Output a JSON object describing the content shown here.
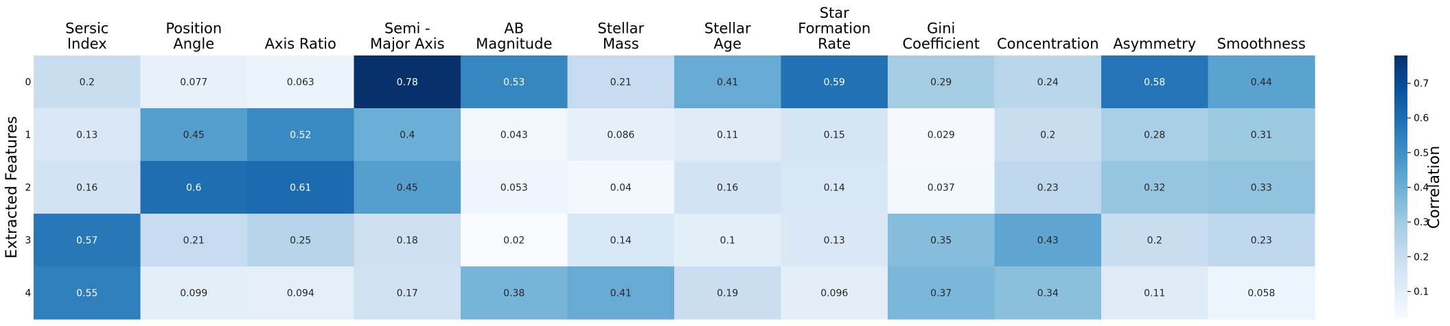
{
  "chart_data": {
    "type": "heatmap",
    "title": "",
    "xlabel": "",
    "ylabel": "Extracted Features",
    "columns": [
      [
        "Sersic",
        "Index"
      ],
      [
        "Position",
        "Angle"
      ],
      [
        "Axis Ratio"
      ],
      [
        "Semi -",
        "Major Axis"
      ],
      [
        "AB",
        "Magnitude"
      ],
      [
        "Stellar",
        "Mass"
      ],
      [
        "Stellar",
        "Age"
      ],
      [
        "Star",
        "Formation",
        "Rate"
      ],
      [
        "Gini",
        "Coefficient"
      ],
      [
        "Concentration"
      ],
      [
        "Asymmetry"
      ],
      [
        "Smoothness"
      ]
    ],
    "rows": [
      "0",
      "1",
      "2",
      "3",
      "4"
    ],
    "values": [
      [
        0.2,
        0.077,
        0.063,
        0.78,
        0.53,
        0.21,
        0.41,
        0.59,
        0.29,
        0.24,
        0.58,
        0.44
      ],
      [
        0.13,
        0.45,
        0.52,
        0.4,
        0.043,
        0.086,
        0.11,
        0.15,
        0.029,
        0.2,
        0.28,
        0.31
      ],
      [
        0.16,
        0.6,
        0.61,
        0.45,
        0.053,
        0.04,
        0.16,
        0.14,
        0.037,
        0.23,
        0.32,
        0.33
      ],
      [
        0.57,
        0.21,
        0.25,
        0.18,
        0.02,
        0.14,
        0.1,
        0.13,
        0.35,
        0.43,
        0.2,
        0.23
      ],
      [
        0.55,
        0.099,
        0.094,
        0.17,
        0.38,
        0.41,
        0.19,
        0.096,
        0.37,
        0.34,
        0.11,
        0.058
      ]
    ],
    "colorbar": {
      "label": "Correlation",
      "range": [
        0.02,
        0.78
      ],
      "ticks": [
        "0.1",
        "0.2",
        "0.3",
        "0.4",
        "0.5",
        "0.6",
        "0.7"
      ],
      "colormap": "Blues",
      "colors": [
        "#f7fbff",
        "#deebf7",
        "#c6dbef",
        "#9ecae1",
        "#6baed6",
        "#4292c6",
        "#2171b5",
        "#08519c",
        "#08306b"
      ]
    },
    "annotation_colors": {
      "dark_text": "#262626",
      "light_text": "#ffffff"
    }
  }
}
